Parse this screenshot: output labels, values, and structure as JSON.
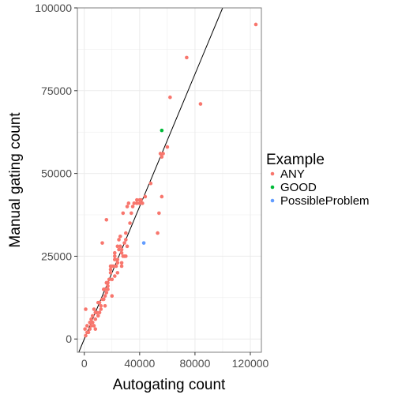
{
  "chart_data": {
    "type": "scatter",
    "xlabel": "Autogating count",
    "ylabel": "Manual gating count",
    "xlim": [
      -5000,
      128000
    ],
    "ylim": [
      -4000,
      100000
    ],
    "x_ticks": [
      0,
      40000,
      80000,
      120000
    ],
    "y_ticks": [
      0,
      25000,
      50000,
      75000,
      100000
    ],
    "grid": true,
    "legend_position": "right",
    "legend": {
      "title": "Example",
      "entries": [
        "ANY",
        "GOOD",
        "PossibleProblem"
      ]
    },
    "reference_line": {
      "slope": 1.0,
      "intercept": 0
    },
    "colors": {
      "ANY": "#F8766D",
      "GOOD": "#00BA38",
      "PossibleProblem": "#619CFF",
      "line": "#000000",
      "grid": "#ebebeb",
      "border": "#7f7f7f"
    },
    "series": [
      {
        "name": "ANY",
        "x": [
          124000,
          74000,
          84000,
          62000,
          60000,
          55000,
          57000,
          56000,
          44000,
          56000,
          48000,
          41000,
          54000,
          38000,
          40000,
          42000,
          40000,
          38000,
          32000,
          36000,
          31000,
          28000,
          33000,
          53000,
          30000,
          30000,
          31000,
          26000,
          29000,
          27000,
          26000,
          24000,
          25000,
          30000,
          27000,
          28000,
          22000,
          29000,
          27000,
          27000,
          24000,
          24000,
          23000,
          22000,
          21000,
          24000,
          20000,
          19000,
          22000,
          17000,
          18000,
          19000,
          20000,
          17000,
          17000,
          16000,
          16000,
          15000,
          15000,
          20000,
          14000,
          14000,
          15000,
          14000,
          13000,
          12000,
          11000,
          10000,
          11000,
          12000,
          9000,
          8000,
          7000,
          8000,
          6000,
          6000,
          7000,
          8000,
          5000,
          5000,
          4000,
          3000,
          4000,
          2000,
          2000,
          1000,
          1000,
          500,
          16000,
          13000,
          34000,
          35000,
          19000,
          22000,
          25000,
          10000
        ],
        "y": [
          95000,
          85000,
          71000,
          73000,
          58000,
          56000,
          56000,
          55000,
          43000,
          43000,
          47000,
          42000,
          38000,
          41000,
          41000,
          41000,
          42000,
          42000,
          41000,
          41000,
          40000,
          38000,
          35000,
          32000,
          32000,
          30000,
          28000,
          31000,
          29000,
          27000,
          28000,
          28000,
          27000,
          25000,
          26000,
          25000,
          25000,
          25000,
          23000,
          22000,
          24000,
          23000,
          22000,
          24000,
          22000,
          20000,
          22000,
          20000,
          19000,
          17000,
          18000,
          21000,
          18000,
          16000,
          15000,
          14000,
          17000,
          15000,
          13000,
          13000,
          12000,
          15000,
          10000,
          12000,
          12000,
          9000,
          11000,
          11000,
          8000,
          10000,
          8000,
          8000,
          9000,
          6000,
          7000,
          5000,
          4000,
          3000,
          6000,
          4000,
          3000,
          2000,
          5000,
          2000,
          4000,
          1000,
          9000,
          3000,
          36000,
          29000,
          38000,
          40000,
          22000,
          26000,
          30000,
          7000
        ]
      },
      {
        "name": "GOOD",
        "x": [
          56000
        ],
        "y": [
          63000
        ]
      },
      {
        "name": "PossibleProblem",
        "x": [
          43000
        ],
        "y": [
          29000
        ]
      }
    ]
  }
}
